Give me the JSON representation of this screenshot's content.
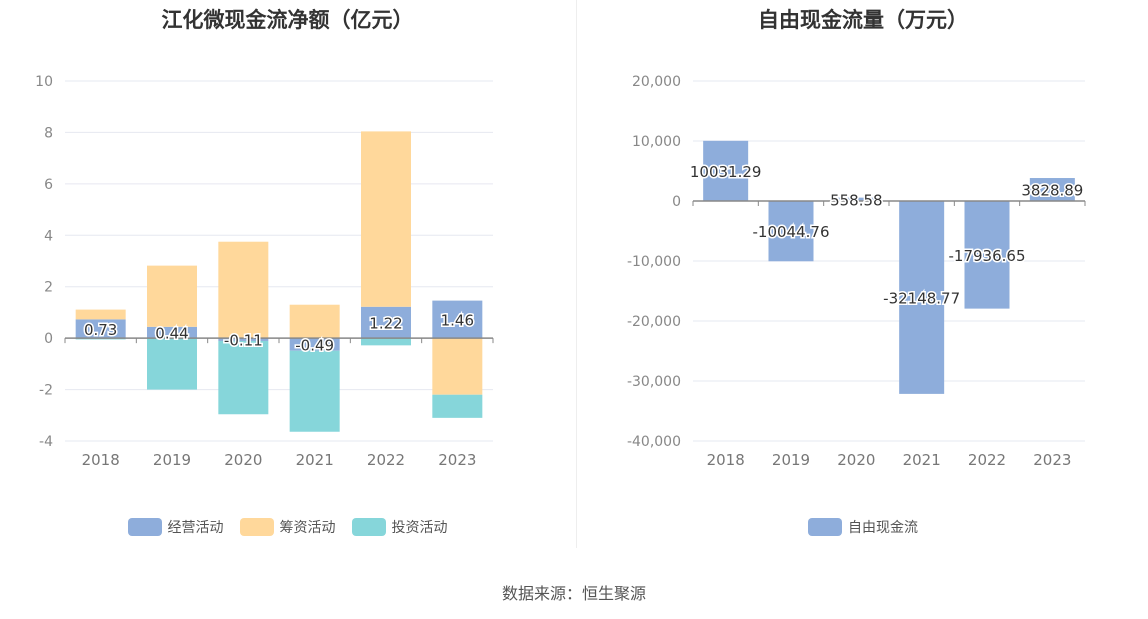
{
  "source": "数据来源：恒生聚源",
  "chart_data": [
    {
      "type": "bar",
      "stacked": true,
      "title": "江化微现金流净额（亿元）",
      "categories": [
        "2018",
        "2019",
        "2020",
        "2021",
        "2022",
        "2023"
      ],
      "ylim": [
        -4,
        10
      ],
      "yticks": [
        -4,
        -2,
        0,
        2,
        4,
        6,
        8,
        10
      ],
      "grid": true,
      "legend_position": "bottom",
      "series": [
        {
          "name": "经营活动",
          "color": "#8eaddb",
          "values": [
            0.73,
            0.44,
            -0.11,
            -0.49,
            1.22,
            1.46
          ],
          "labels": [
            "0.73",
            "0.44",
            "-0.11",
            "-0.49",
            "1.22",
            "1.46"
          ]
        },
        {
          "name": "筹资活动",
          "color": "#ffd89b",
          "values": [
            0.38,
            2.38,
            3.75,
            1.3,
            6.82,
            -2.2
          ]
        },
        {
          "name": "投资活动",
          "color": "#86d6da",
          "values": [
            -0.05,
            -2.0,
            -2.85,
            -3.15,
            -0.28,
            -0.9
          ]
        }
      ]
    },
    {
      "type": "bar",
      "title": "自由现金流量（万元）",
      "categories": [
        "2018",
        "2019",
        "2020",
        "2021",
        "2022",
        "2023"
      ],
      "ylim": [
        -40000,
        20000
      ],
      "yticks": [
        -40000,
        -30000,
        -20000,
        -10000,
        0,
        10000,
        20000
      ],
      "ytick_labels": [
        "-40,000",
        "-30,000",
        "-20,000",
        "-10,000",
        "0",
        "10,000",
        "20,000"
      ],
      "grid": true,
      "legend_position": "bottom",
      "series": [
        {
          "name": "自由现金流",
          "color": "#8eaddb",
          "values": [
            10031.29,
            -10044.76,
            558.58,
            -32148.77,
            -17936.65,
            3828.89
          ],
          "labels": [
            "10031.29",
            "-10044.76",
            "558.58",
            "-32148.77",
            "-17936.65",
            "3828.89"
          ]
        }
      ]
    }
  ]
}
